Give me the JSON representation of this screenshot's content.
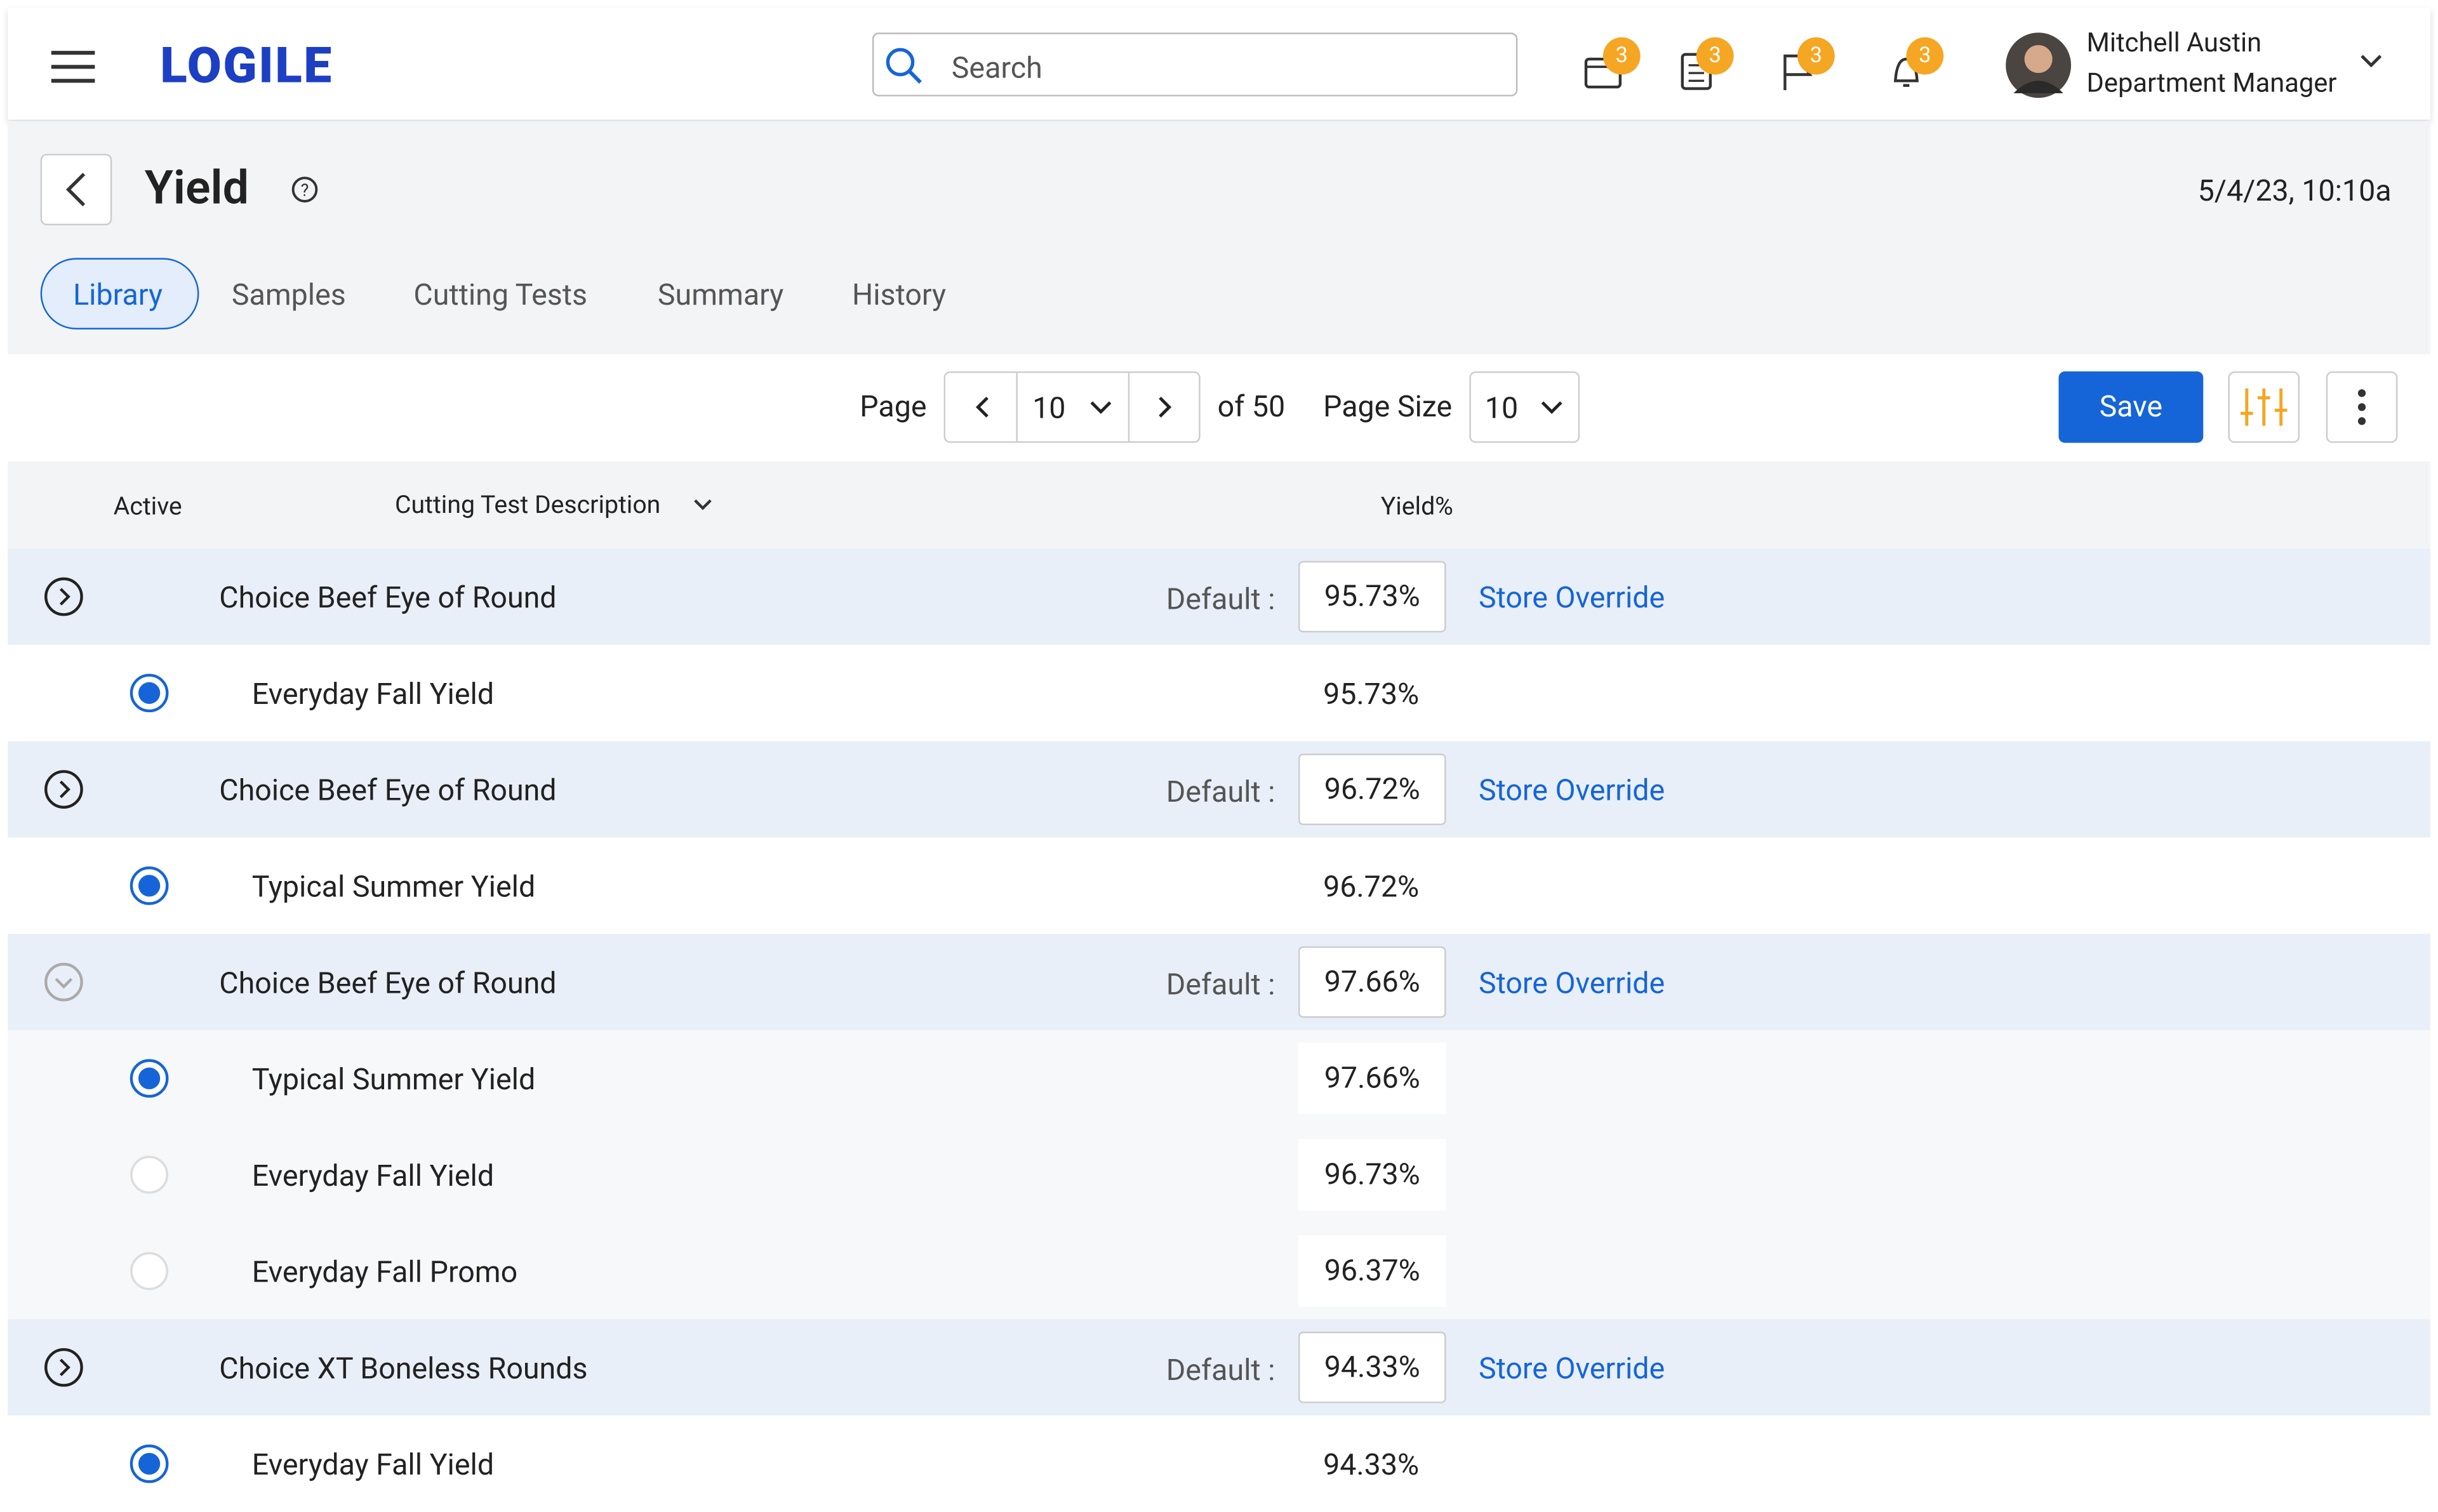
{
  "header": {
    "logo": "LOGILE",
    "search_placeholder": "Search",
    "badges": [
      "3",
      "3",
      "3",
      "3"
    ],
    "user_name": "Mitchell Austin",
    "user_role": "Department Manager"
  },
  "page": {
    "title": "Yield",
    "datetime": "5/4/23, 10:10a",
    "tabs": [
      "Library",
      "Samples",
      "Cutting Tests",
      "Summary",
      "History"
    ],
    "active_tab": 0
  },
  "toolbar": {
    "page_label": "Page",
    "page": "10",
    "of_label": "of 50",
    "page_size_label": "Page Size",
    "page_size": "10",
    "save": "Save"
  },
  "table": {
    "columns": [
      "Active",
      "Cutting Test Description",
      "Yield%"
    ],
    "default_label": "Default :",
    "override_label": "Store Override",
    "groups": [
      {
        "name": "Choice Beef Eye of Round",
        "default": "95.73%",
        "expanded": false,
        "children": [
          {
            "name": "Everyday Fall Yield",
            "yield": "95.73%",
            "active": true
          }
        ]
      },
      {
        "name": "Choice Beef Eye of Round",
        "default": "96.72%",
        "expanded": false,
        "children": [
          {
            "name": "Typical Summer Yield",
            "yield": "96.72%",
            "active": true
          }
        ]
      },
      {
        "name": "Choice Beef Eye of Round",
        "default": "97.66%",
        "expanded": true,
        "children": [
          {
            "name": "Typical Summer Yield",
            "yield": "97.66%",
            "active": true
          },
          {
            "name": "Everyday Fall Yield",
            "yield": "96.73%",
            "active": false
          },
          {
            "name": "Everyday Fall Promo",
            "yield": "96.37%",
            "active": false
          }
        ]
      },
      {
        "name": "Choice XT Boneless Rounds",
        "default": "94.33%",
        "expanded": false,
        "children": [
          {
            "name": "Everyday Fall Yield",
            "yield": "94.33%",
            "active": true
          }
        ]
      }
    ]
  }
}
